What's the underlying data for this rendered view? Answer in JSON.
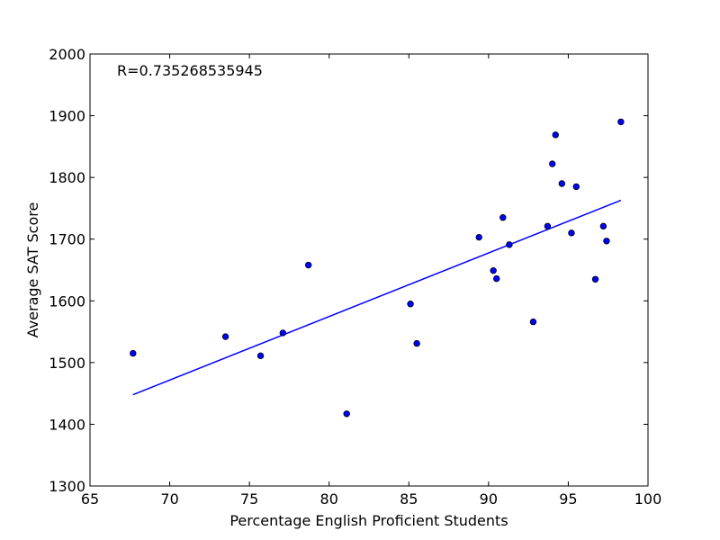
{
  "chart_data": {
    "type": "scatter",
    "title": "",
    "xlabel": "Percentage English Proficient Students",
    "ylabel": "Average SAT Score",
    "xlim": [
      65,
      100
    ],
    "ylim": [
      1300,
      2000
    ],
    "x_ticks": [
      65,
      70,
      75,
      80,
      85,
      90,
      95,
      100
    ],
    "y_ticks": [
      1300,
      1400,
      1500,
      1600,
      1700,
      1800,
      1900,
      2000
    ],
    "x_tick_labels": [
      "65",
      "70",
      "75",
      "80",
      "85",
      "90",
      "95",
      "100"
    ],
    "y_tick_labels": [
      "1300",
      "1400",
      "1500",
      "1600",
      "1700",
      "1800",
      "1900",
      "2000"
    ],
    "grid": false,
    "annotation": "R=0.735268535945",
    "colors": {
      "points": "#0000ff",
      "point_edge": "#000000",
      "fit_line": "#0000ff"
    },
    "points": [
      {
        "x": 67.7,
        "y": 1515
      },
      {
        "x": 73.5,
        "y": 1542
      },
      {
        "x": 75.7,
        "y": 1511
      },
      {
        "x": 77.1,
        "y": 1548
      },
      {
        "x": 78.7,
        "y": 1658
      },
      {
        "x": 81.1,
        "y": 1417
      },
      {
        "x": 85.1,
        "y": 1595
      },
      {
        "x": 85.5,
        "y": 1531
      },
      {
        "x": 89.4,
        "y": 1703
      },
      {
        "x": 90.3,
        "y": 1649
      },
      {
        "x": 90.5,
        "y": 1636
      },
      {
        "x": 90.9,
        "y": 1735
      },
      {
        "x": 91.3,
        "y": 1691
      },
      {
        "x": 92.8,
        "y": 1566
      },
      {
        "x": 93.7,
        "y": 1721
      },
      {
        "x": 94.0,
        "y": 1822
      },
      {
        "x": 94.2,
        "y": 1869
      },
      {
        "x": 94.6,
        "y": 1790
      },
      {
        "x": 95.2,
        "y": 1710
      },
      {
        "x": 95.5,
        "y": 1785
      },
      {
        "x": 96.7,
        "y": 1635
      },
      {
        "x": 97.2,
        "y": 1721
      },
      {
        "x": 97.4,
        "y": 1697
      },
      {
        "x": 98.3,
        "y": 1890
      }
    ],
    "fit_line": [
      {
        "x": 67.7,
        "y": 1448
      },
      {
        "x": 98.3,
        "y": 1763
      }
    ]
  }
}
